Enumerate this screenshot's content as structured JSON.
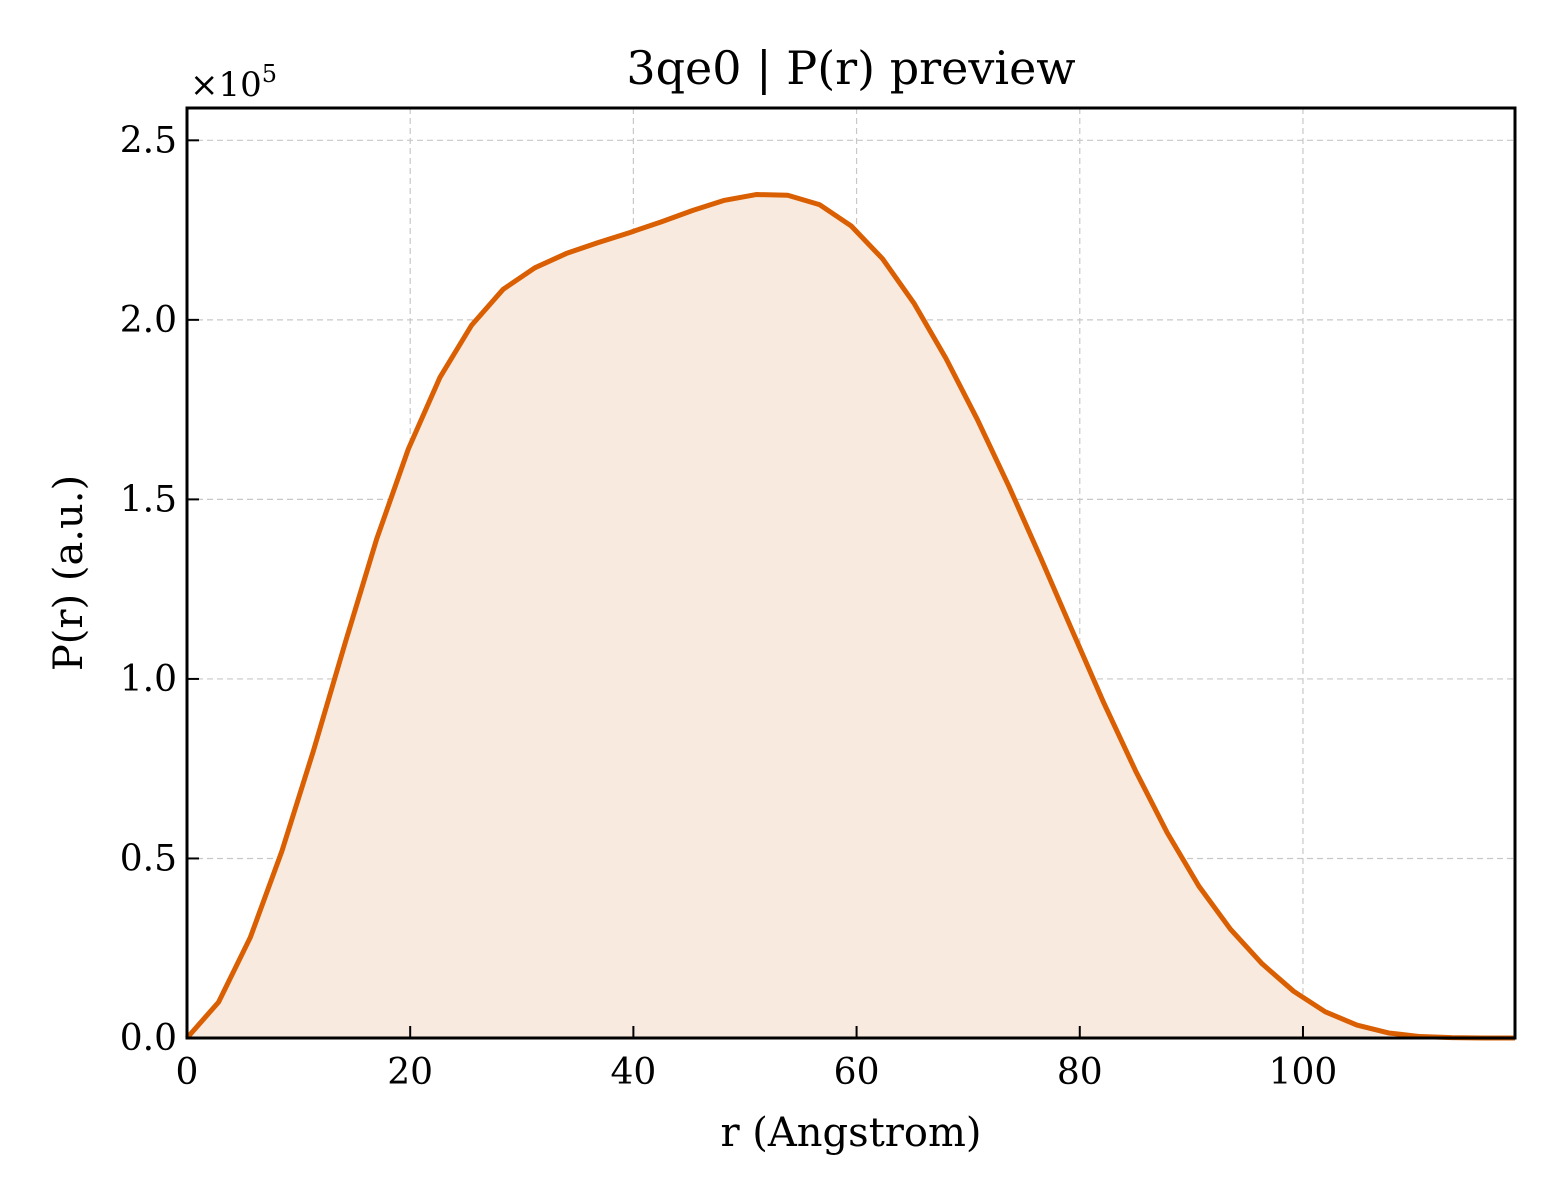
{
  "chart_data": {
    "type": "area",
    "title": "3qe0 | P(r) preview",
    "xlabel": "r (Angstrom)",
    "ylabel": "P(r) (a.u.)",
    "y_multiplier": {
      "base": "×10",
      "exponent": "5"
    },
    "xlim": [
      0,
      119
    ],
    "ylim": [
      0,
      2.59
    ],
    "x_ticks": [
      0,
      20,
      40,
      60,
      80,
      100
    ],
    "y_ticks": [
      0.0,
      0.5,
      1.0,
      1.5,
      2.0,
      2.5
    ],
    "x_tick_labels": [
      "0",
      "20",
      "40",
      "60",
      "80",
      "100"
    ],
    "y_tick_labels": [
      "0.0",
      "0.5",
      "1.0",
      "1.5",
      "2.0",
      "2.5"
    ],
    "grid": true,
    "series": [
      {
        "color": "#d95f02",
        "fill_color": "#f9eadf",
        "x": [
          0,
          2.83,
          5.67,
          8.5,
          11.33,
          14.17,
          17.0,
          19.83,
          22.67,
          25.5,
          28.33,
          31.17,
          34.0,
          36.83,
          39.67,
          42.5,
          45.33,
          48.17,
          51.0,
          53.83,
          56.67,
          59.5,
          62.33,
          65.17,
          68.0,
          70.83,
          73.67,
          76.5,
          79.33,
          82.17,
          85.0,
          87.83,
          90.67,
          93.5,
          96.33,
          99.17,
          102.0,
          104.83,
          107.67,
          110.5,
          113.33,
          116.17,
          119.0
        ],
        "y": [
          0.0,
          0.1,
          0.28,
          0.52,
          0.8,
          1.1,
          1.39,
          1.64,
          1.84,
          1.985,
          2.085,
          2.145,
          2.185,
          2.215,
          2.243,
          2.273,
          2.305,
          2.333,
          2.349,
          2.347,
          2.321,
          2.262,
          2.17,
          2.045,
          1.893,
          1.722,
          1.535,
          1.337,
          1.134,
          0.932,
          0.744,
          0.572,
          0.423,
          0.303,
          0.207,
          0.13,
          0.073,
          0.036,
          0.014,
          0.004,
          0.001,
          0.0,
          0.0
        ]
      }
    ]
  }
}
